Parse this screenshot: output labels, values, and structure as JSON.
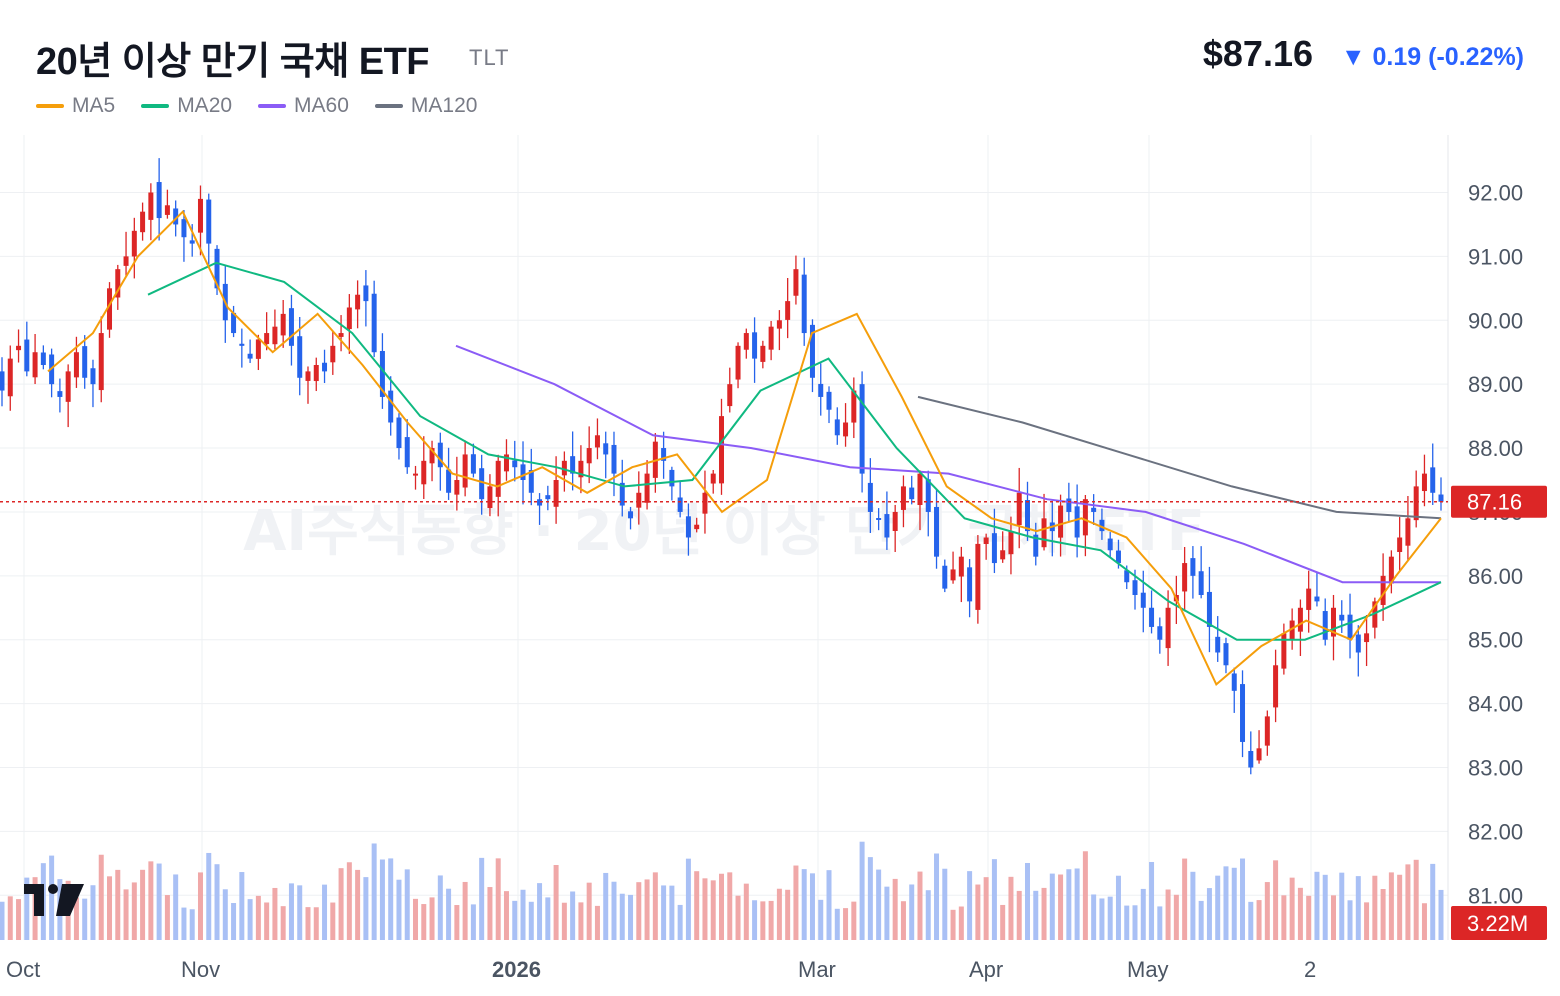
{
  "header": {
    "title": "20년 이상 만기 국채 ETF",
    "ticker": "TLT",
    "price": "$87.16",
    "change": "▼ 0.19 (-0.22%)"
  },
  "legend": [
    {
      "label": "MA5",
      "color": "#f59e0b"
    },
    {
      "label": "MA20",
      "color": "#10b981"
    },
    {
      "label": "MA60",
      "color": "#8b5cf6"
    },
    {
      "label": "MA120",
      "color": "#6b7280"
    }
  ],
  "watermark": "AI주식동향 · 20년 이상 만기 국채 ETF",
  "colors": {
    "up": "#dc2626",
    "down": "#2563eb",
    "grid": "#eef0f3",
    "axis_text": "#4b5563"
  },
  "chart_data": {
    "type": "candlestick",
    "y_ticks": [
      "92.00",
      "91.00",
      "90.00",
      "89.00",
      "88.00",
      "87.00",
      "86.00",
      "85.00",
      "84.00",
      "83.00",
      "82.00",
      "81.00"
    ],
    "ylim": [
      80.3,
      92.9
    ],
    "x_tick_labels": [
      "Oct",
      "Nov",
      "2026",
      "Mar",
      "Apr",
      "May",
      "2"
    ],
    "last_price_label": "87.16",
    "last_price": 87.16,
    "volume_label": "3.22M",
    "last_volume_millions": 3.22,
    "candles_close": [
      88.9,
      89.4,
      89.6,
      89.2,
      89.5,
      89.3,
      89.0,
      88.8,
      89.2,
      89.5,
      89.1,
      89.0,
      89.8,
      90.5,
      90.8,
      91.0,
      91.4,
      91.7,
      92.0,
      91.6,
      91.8,
      91.5,
      91.3,
      91.2,
      91.9,
      91.2,
      90.5,
      90.0,
      89.8,
      89.6,
      89.4,
      89.7,
      89.8,
      89.9,
      90.1,
      89.6,
      89.1,
      89.2,
      89.3,
      89.2,
      89.6,
      89.8,
      90.2,
      90.4,
      90.3,
      89.5,
      88.8,
      88.4,
      88.0,
      87.7,
      87.6,
      87.8,
      88.0,
      87.7,
      87.3,
      87.5,
      87.9,
      87.6,
      87.2,
      87.4,
      87.8,
      87.9,
      87.7,
      87.5,
      87.3,
      87.1,
      87.2,
      87.5,
      87.8,
      87.6,
      87.8,
      88.0,
      88.2,
      87.9,
      87.6,
      87.1,
      86.9,
      87.3,
      87.6,
      88.1,
      87.8,
      87.4,
      87.0,
      86.6,
      86.8,
      87.3,
      87.6,
      88.5,
      89.0,
      89.6,
      89.8,
      89.4,
      89.6,
      89.9,
      90.0,
      90.3,
      90.8,
      89.8,
      89.1,
      88.8,
      88.6,
      88.2,
      88.4,
      88.9,
      87.6,
      87.0,
      86.9,
      86.6,
      87.0,
      87.4,
      87.2,
      87.6,
      87.0,
      86.3,
      85.8,
      86.1,
      86.3,
      85.6,
      86.5,
      86.6,
      86.2,
      86.4,
      86.7,
      87.3,
      86.7,
      86.3,
      86.9,
      86.7,
      87.1,
      87.0,
      86.6,
      87.2,
      87.0,
      86.7,
      86.4,
      86.2,
      85.9,
      85.7,
      85.5,
      85.2,
      85.0,
      85.5,
      85.7,
      86.2,
      86.0,
      85.7,
      85.2,
      84.8,
      84.6,
      84.2,
      83.4,
      83.0,
      83.3,
      83.8,
      84.6,
      85.1,
      85.3,
      85.5,
      85.8,
      85.6,
      85.0,
      85.5,
      85.3,
      85.0,
      84.8,
      85.1,
      85.6,
      86.0,
      86.3,
      86.6,
      86.9,
      87.4,
      87.6,
      87.3,
      87.16
    ],
    "ma5_approx": [
      89.2,
      89.8,
      91.0,
      91.7,
      90.2,
      89.5,
      90.1,
      89.3,
      88.4,
      87.6,
      87.4,
      87.7,
      87.3,
      87.7,
      87.9,
      87.0,
      87.5,
      89.8,
      90.1,
      88.8,
      87.4,
      86.9,
      86.7,
      86.9,
      86.6,
      85.8,
      84.3,
      84.9,
      85.3,
      85.0,
      86.0,
      86.9
    ],
    "ma20_approx": [
      90.4,
      90.9,
      90.6,
      89.8,
      88.5,
      87.9,
      87.7,
      87.4,
      87.5,
      88.9,
      89.4,
      88.0,
      86.9,
      86.6,
      86.4,
      85.6,
      85.0,
      85.0,
      85.4,
      85.9
    ],
    "ma60_approx": [
      89.6,
      89.0,
      88.2,
      88.0,
      87.7,
      87.6,
      87.2,
      87.0,
      86.5,
      85.9,
      85.9
    ],
    "ma120_approx": [
      88.8,
      88.4,
      87.9,
      87.4,
      87.0,
      86.9
    ]
  }
}
